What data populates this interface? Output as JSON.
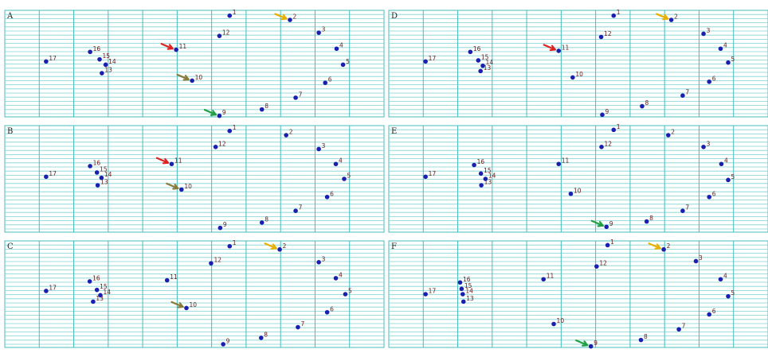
{
  "figure": {
    "panels": [
      {
        "id": "A",
        "points": [
          {
            "n": "1",
            "x": 0.593,
            "y": 0.05
          },
          {
            "n": "2",
            "x": 0.752,
            "y": 0.09
          },
          {
            "n": "3",
            "x": 0.828,
            "y": 0.21
          },
          {
            "n": "4",
            "x": 0.875,
            "y": 0.36
          },
          {
            "n": "5",
            "x": 0.892,
            "y": 0.51
          },
          {
            "n": "6",
            "x": 0.845,
            "y": 0.68
          },
          {
            "n": "7",
            "x": 0.767,
            "y": 0.82
          },
          {
            "n": "8",
            "x": 0.678,
            "y": 0.93
          },
          {
            "n": "9",
            "x": 0.566,
            "y": 0.99
          },
          {
            "n": "10",
            "x": 0.494,
            "y": 0.66
          },
          {
            "n": "11",
            "x": 0.452,
            "y": 0.37
          },
          {
            "n": "12",
            "x": 0.566,
            "y": 0.24
          },
          {
            "n": "13",
            "x": 0.256,
            "y": 0.59
          },
          {
            "n": "14",
            "x": 0.266,
            "y": 0.51
          },
          {
            "n": "15",
            "x": 0.25,
            "y": 0.46
          },
          {
            "n": "16",
            "x": 0.225,
            "y": 0.39
          },
          {
            "n": "17",
            "x": 0.109,
            "y": 0.48
          }
        ],
        "arrows": [
          {
            "color": "#e8b000",
            "target": "2"
          },
          {
            "color": "#dd2222",
            "target": "11"
          },
          {
            "color": "#8a7a3a",
            "target": "10"
          },
          {
            "color": "#20a040",
            "target": "9"
          }
        ]
      },
      {
        "id": "D",
        "points": [
          {
            "n": "1",
            "x": 0.593,
            "y": 0.05
          },
          {
            "n": "2",
            "x": 0.745,
            "y": 0.09
          },
          {
            "n": "3",
            "x": 0.83,
            "y": 0.22
          },
          {
            "n": "4",
            "x": 0.875,
            "y": 0.36
          },
          {
            "n": "5",
            "x": 0.895,
            "y": 0.49
          },
          {
            "n": "6",
            "x": 0.845,
            "y": 0.67
          },
          {
            "n": "7",
            "x": 0.775,
            "y": 0.8
          },
          {
            "n": "8",
            "x": 0.668,
            "y": 0.9
          },
          {
            "n": "9",
            "x": 0.563,
            "y": 0.98
          },
          {
            "n": "10",
            "x": 0.485,
            "y": 0.63
          },
          {
            "n": "11",
            "x": 0.448,
            "y": 0.38
          },
          {
            "n": "12",
            "x": 0.56,
            "y": 0.25
          },
          {
            "n": "13",
            "x": 0.242,
            "y": 0.57
          },
          {
            "n": "14",
            "x": 0.248,
            "y": 0.52
          },
          {
            "n": "15",
            "x": 0.236,
            "y": 0.47
          },
          {
            "n": "16",
            "x": 0.215,
            "y": 0.39
          },
          {
            "n": "17",
            "x": 0.097,
            "y": 0.48
          }
        ],
        "arrows": [
          {
            "color": "#e8b000",
            "target": "2"
          },
          {
            "color": "#dd2222",
            "target": "11"
          }
        ]
      },
      {
        "id": "B",
        "points": [
          {
            "n": "1",
            "x": 0.593,
            "y": 0.05
          },
          {
            "n": "2",
            "x": 0.742,
            "y": 0.09
          },
          {
            "n": "3",
            "x": 0.828,
            "y": 0.22
          },
          {
            "n": "4",
            "x": 0.873,
            "y": 0.36
          },
          {
            "n": "5",
            "x": 0.895,
            "y": 0.5
          },
          {
            "n": "6",
            "x": 0.85,
            "y": 0.67
          },
          {
            "n": "7",
            "x": 0.767,
            "y": 0.8
          },
          {
            "n": "8",
            "x": 0.678,
            "y": 0.91
          },
          {
            "n": "9",
            "x": 0.568,
            "y": 0.96
          },
          {
            "n": "10",
            "x": 0.466,
            "y": 0.6
          },
          {
            "n": "11",
            "x": 0.44,
            "y": 0.36
          },
          {
            "n": "12",
            "x": 0.556,
            "y": 0.2
          },
          {
            "n": "13",
            "x": 0.245,
            "y": 0.56
          },
          {
            "n": "14",
            "x": 0.255,
            "y": 0.49
          },
          {
            "n": "15",
            "x": 0.243,
            "y": 0.44
          },
          {
            "n": "16",
            "x": 0.225,
            "y": 0.38
          },
          {
            "n": "17",
            "x": 0.109,
            "y": 0.48
          }
        ],
        "arrows": [
          {
            "color": "#dd2222",
            "target": "11"
          },
          {
            "color": "#8a7a3a",
            "target": "10"
          }
        ]
      },
      {
        "id": "E",
        "points": [
          {
            "n": "1",
            "x": 0.593,
            "y": 0.04
          },
          {
            "n": "2",
            "x": 0.737,
            "y": 0.09
          },
          {
            "n": "3",
            "x": 0.83,
            "y": 0.2
          },
          {
            "n": "4",
            "x": 0.877,
            "y": 0.36
          },
          {
            "n": "5",
            "x": 0.895,
            "y": 0.51
          },
          {
            "n": "6",
            "x": 0.845,
            "y": 0.67
          },
          {
            "n": "7",
            "x": 0.775,
            "y": 0.8
          },
          {
            "n": "8",
            "x": 0.68,
            "y": 0.9
          },
          {
            "n": "9",
            "x": 0.574,
            "y": 0.95
          },
          {
            "n": "10",
            "x": 0.48,
            "y": 0.64
          },
          {
            "n": "11",
            "x": 0.448,
            "y": 0.36
          },
          {
            "n": "12",
            "x": 0.561,
            "y": 0.2
          },
          {
            "n": "13",
            "x": 0.244,
            "y": 0.56
          },
          {
            "n": "14",
            "x": 0.255,
            "y": 0.5
          },
          {
            "n": "15",
            "x": 0.243,
            "y": 0.45
          },
          {
            "n": "16",
            "x": 0.225,
            "y": 0.37
          },
          {
            "n": "17",
            "x": 0.097,
            "y": 0.48
          }
        ],
        "arrows": [
          {
            "color": "#20a040",
            "target": "9"
          }
        ]
      },
      {
        "id": "C",
        "points": [
          {
            "n": "1",
            "x": 0.593,
            "y": 0.05
          },
          {
            "n": "2",
            "x": 0.725,
            "y": 0.08
          },
          {
            "n": "3",
            "x": 0.828,
            "y": 0.2
          },
          {
            "n": "4",
            "x": 0.873,
            "y": 0.35
          },
          {
            "n": "5",
            "x": 0.898,
            "y": 0.5
          },
          {
            "n": "6",
            "x": 0.85,
            "y": 0.67
          },
          {
            "n": "7",
            "x": 0.773,
            "y": 0.81
          },
          {
            "n": "8",
            "x": 0.676,
            "y": 0.91
          },
          {
            "n": "9",
            "x": 0.576,
            "y": 0.97
          },
          {
            "n": "10",
            "x": 0.479,
            "y": 0.63
          },
          {
            "n": "11",
            "x": 0.428,
            "y": 0.37
          },
          {
            "n": "12",
            "x": 0.544,
            "y": 0.21
          },
          {
            "n": "13",
            "x": 0.233,
            "y": 0.57
          },
          {
            "n": "14",
            "x": 0.252,
            "y": 0.51
          },
          {
            "n": "15",
            "x": 0.243,
            "y": 0.46
          },
          {
            "n": "16",
            "x": 0.224,
            "y": 0.38
          },
          {
            "n": "17",
            "x": 0.109,
            "y": 0.47
          }
        ],
        "arrows": [
          {
            "color": "#e8b000",
            "target": "2"
          },
          {
            "color": "#8a7a3a",
            "target": "10"
          }
        ]
      },
      {
        "id": "F",
        "points": [
          {
            "n": "1",
            "x": 0.577,
            "y": 0.04
          },
          {
            "n": "2",
            "x": 0.725,
            "y": 0.08
          },
          {
            "n": "3",
            "x": 0.81,
            "y": 0.19
          },
          {
            "n": "4",
            "x": 0.875,
            "y": 0.36
          },
          {
            "n": "5",
            "x": 0.895,
            "y": 0.52
          },
          {
            "n": "6",
            "x": 0.845,
            "y": 0.69
          },
          {
            "n": "7",
            "x": 0.765,
            "y": 0.83
          },
          {
            "n": "8",
            "x": 0.665,
            "y": 0.93
          },
          {
            "n": "9",
            "x": 0.533,
            "y": 0.99
          },
          {
            "n": "10",
            "x": 0.435,
            "y": 0.78
          },
          {
            "n": "11",
            "x": 0.408,
            "y": 0.36
          },
          {
            "n": "12",
            "x": 0.548,
            "y": 0.24
          },
          {
            "n": "13",
            "x": 0.197,
            "y": 0.57
          },
          {
            "n": "14",
            "x": 0.195,
            "y": 0.5
          },
          {
            "n": "15",
            "x": 0.192,
            "y": 0.45
          },
          {
            "n": "16",
            "x": 0.188,
            "y": 0.39
          },
          {
            "n": "17",
            "x": 0.097,
            "y": 0.5
          }
        ],
        "arrows": [
          {
            "color": "#e8b000",
            "target": "2"
          },
          {
            "color": "#20a040",
            "target": "9"
          }
        ]
      }
    ]
  }
}
